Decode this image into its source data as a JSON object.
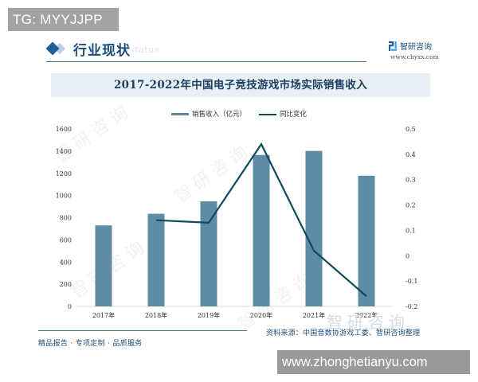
{
  "overlay": {
    "tg_label": "TG: MYYJJPP",
    "site_url": "www.zhonghetianyu.com"
  },
  "header": {
    "section_title": "行业现状",
    "ghost_text": "status",
    "brand_name": "智研咨询",
    "brand_url": "www.chyxx.com"
  },
  "chart": {
    "title": "2017-2022年中国电子竞技游戏市场实际销售收入",
    "legend": {
      "bar_label": "销售收入（亿元）",
      "line_label": "同比变化"
    },
    "colors": {
      "bar": "#5e8ca5",
      "line": "#0f4b5f",
      "title_band": "#e8f0f7"
    }
  },
  "footer": {
    "slogan": "精品报告 · 专项定制 · 品质服务",
    "source": "资料来源：中国音数协游戏工委、智研咨询整理",
    "watermark": "智研咨询"
  },
  "watermarks": [
    "智研咨询",
    "智研咨询",
    "智研咨询",
    "智研咨询"
  ],
  "chart_data": {
    "type": "bar",
    "title": "2017-2022年中国电子竞技游戏市场实际销售收入",
    "categories": [
      "2017年",
      "2018年",
      "2019年",
      "2020年",
      "2021年",
      "2022年"
    ],
    "series": [
      {
        "name": "销售收入（亿元）",
        "type": "bar",
        "axis": "left",
        "values": [
          730,
          835,
          947,
          1365,
          1402,
          1178
        ]
      },
      {
        "name": "同比变化",
        "type": "line",
        "axis": "right",
        "values": [
          null,
          0.14,
          0.13,
          0.44,
          0.02,
          -0.16
        ]
      }
    ],
    "xlabel": "",
    "ylabel": "",
    "ylim": [
      0,
      1600
    ],
    "yticks": [
      0,
      200,
      400,
      600,
      800,
      1000,
      1200,
      1400,
      1600
    ],
    "y2lim": [
      -0.2,
      0.5
    ],
    "y2ticks": [
      -0.2,
      -0.1,
      0,
      0.1,
      0.2,
      0.3,
      0.4,
      0.5
    ],
    "y2tick_labels": [
      "-0.2",
      "-0.1",
      "0",
      "0.1",
      "0.2",
      "0.3",
      "0.4",
      "0.5"
    ],
    "grid": false,
    "legend_position": "top"
  }
}
